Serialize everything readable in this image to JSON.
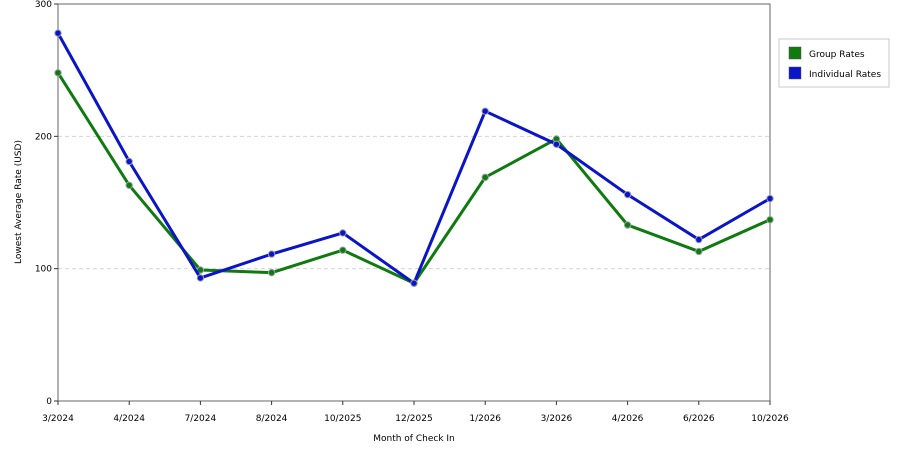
{
  "chart_data": {
    "type": "line",
    "title": "",
    "xlabel": "Month of Check In",
    "ylabel": "Lowest Average Rate (USD)",
    "categories": [
      "3/2024",
      "4/2024",
      "7/2024",
      "8/2024",
      "10/2025",
      "12/2025",
      "1/2026",
      "3/2026",
      "4/2026",
      "6/2026",
      "10/2026"
    ],
    "ylim": [
      0,
      300
    ],
    "yticks": [
      0,
      100,
      200,
      300
    ],
    "grid": true,
    "legend_position": "right",
    "series": [
      {
        "name": "Group Rates",
        "color": "#0f7a0f",
        "values": [
          248,
          163,
          99,
          97,
          114,
          89,
          169,
          198,
          133,
          113,
          137
        ]
      },
      {
        "name": "Individual Rates",
        "color": "#0a14c8",
        "values": [
          278,
          181,
          93,
          111,
          127,
          89,
          219,
          194,
          156,
          122,
          153
        ]
      }
    ]
  }
}
